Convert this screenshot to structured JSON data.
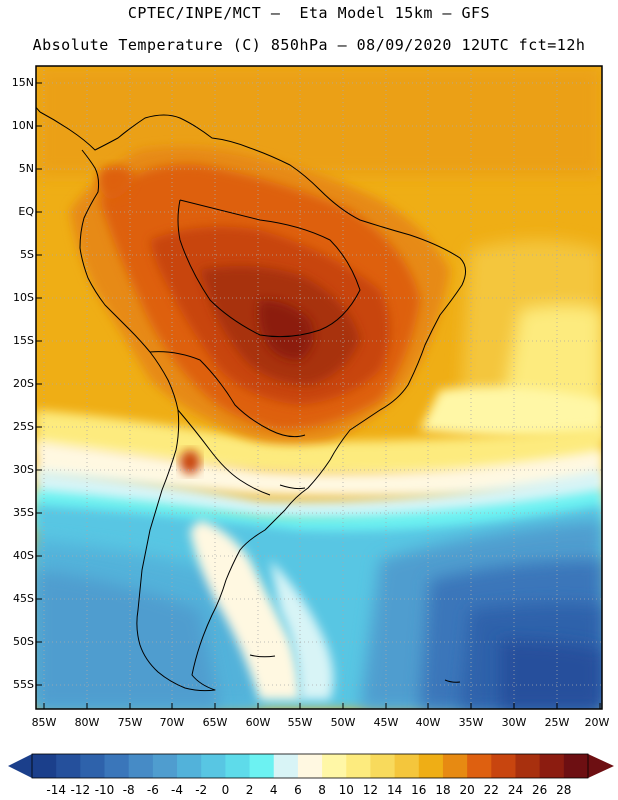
{
  "header": {
    "line1": "CPTEC/INPE/MCT –  Eta Model 15km – GFS",
    "line2": "Absolute Temperature (C) 850hPa – 08/09/2020 12UTC fct=12h"
  },
  "map": {
    "lat_labels": [
      "15N",
      "10N",
      "5N",
      "EQ",
      "5S",
      "10S",
      "15S",
      "20S",
      "25S",
      "30S",
      "35S",
      "40S",
      "45S",
      "50S",
      "55S"
    ],
    "lon_labels": [
      "85W",
      "80W",
      "75W",
      "70W",
      "65W",
      "60W",
      "55W",
      "50W",
      "45W",
      "40W",
      "35W",
      "30W",
      "25W",
      "20W"
    ],
    "field": "temperature-850hPa"
  },
  "colorbar": {
    "labels": [
      "-14",
      "-12",
      "-10",
      "-8",
      "-6",
      "-4",
      "-2",
      "0",
      "2",
      "4",
      "6",
      "8",
      "10",
      "12",
      "14",
      "16",
      "18",
      "20",
      "22",
      "24",
      "26",
      "28"
    ],
    "colors": [
      "#1b3f8b",
      "#25509c",
      "#2e62ab",
      "#3a76ba",
      "#468bc6",
      "#4f9dcf",
      "#52b2da",
      "#58c6e3",
      "#5edbea",
      "#6cf2f2",
      "#d8f4f6",
      "#fff8e1",
      "#fff7a6",
      "#fdeb7e",
      "#f8da5c",
      "#f4c63c",
      "#efae15",
      "#e78a12",
      "#de6010",
      "#c8450f",
      "#a8300e",
      "#8c1c10",
      "#6d0f12"
    ]
  }
}
